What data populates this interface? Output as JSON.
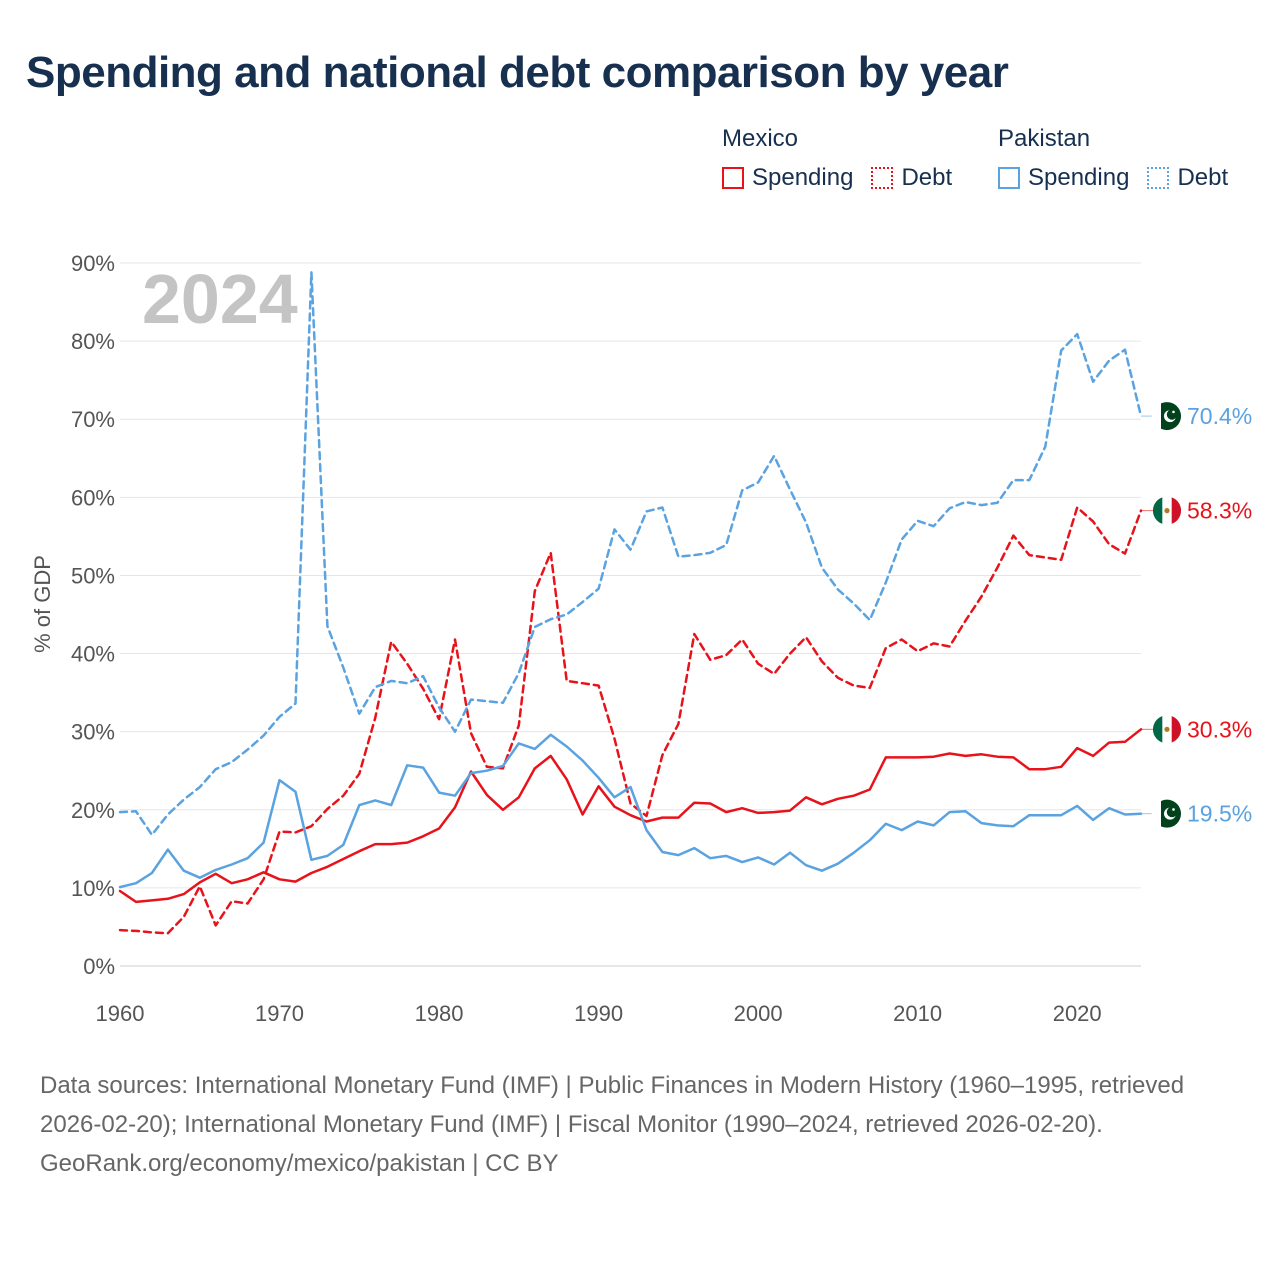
{
  "title": "Spending and national debt comparison by year",
  "legend": {
    "mexico": {
      "name": "Mexico",
      "spending": "Spending",
      "debt": "Debt"
    },
    "pakistan": {
      "name": "Pakistan",
      "spending": "Spending",
      "debt": "Debt"
    }
  },
  "year_watermark": "2024",
  "colors": {
    "mexico": "#e8131a",
    "pakistan": "#5aa2e0",
    "grid": "#e6e6e6",
    "title": "#17304f"
  },
  "icons": {
    "mexico": "mexico-flag-icon",
    "pakistan": "pakistan-flag-icon"
  },
  "footer": {
    "sources": "Data sources: International Monetary Fund (IMF) | Public Finances in Modern History (1960–1995, retrieved 2026-02-20); International Monetary Fund (IMF) | Fiscal Monitor (1990–2024, retrieved 2026-02-20).",
    "credit": "GeoRank.org/economy/mexico/pakistan | CC BY"
  },
  "chart_data": {
    "type": "line",
    "title": "Spending and national debt comparison by year",
    "xlabel": "",
    "ylabel": "% of GDP",
    "xlim": [
      1960,
      2025
    ],
    "ylim": [
      0,
      90
    ],
    "x_ticks": [
      1960,
      1970,
      1980,
      1990,
      2000,
      2010,
      2020
    ],
    "x_tick_labels": [
      "1960",
      "1970",
      "1980",
      "1990",
      "2000",
      "2010",
      "2020"
    ],
    "y_ticks": [
      0,
      10,
      20,
      30,
      40,
      50,
      60,
      70,
      80,
      90
    ],
    "y_tick_labels": [
      "0%",
      "10%",
      "20%",
      "30%",
      "40%",
      "50%",
      "60%",
      "70%",
      "80%",
      "90%"
    ],
    "grid": true,
    "x": [
      1960,
      1961,
      1962,
      1963,
      1964,
      1965,
      1966,
      1967,
      1968,
      1969,
      1970,
      1971,
      1972,
      1973,
      1974,
      1975,
      1976,
      1977,
      1978,
      1979,
      1980,
      1981,
      1982,
      1983,
      1984,
      1985,
      1986,
      1987,
      1988,
      1989,
      1990,
      1991,
      1992,
      1993,
      1994,
      1995,
      1996,
      1997,
      1998,
      1999,
      2000,
      2001,
      2002,
      2003,
      2004,
      2005,
      2006,
      2007,
      2008,
      2009,
      2010,
      2011,
      2012,
      2013,
      2014,
      2015,
      2016,
      2017,
      2018,
      2019,
      2020,
      2021,
      2022,
      2023,
      2024
    ],
    "series": [
      {
        "name": "Mexico Spending",
        "country": "mexico",
        "style": "solid",
        "end_label": "30.3%",
        "values": [
          9.6,
          8.2,
          8.4,
          8.6,
          9.2,
          10.7,
          11.8,
          10.6,
          11.1,
          12.0,
          11.1,
          10.8,
          11.9,
          12.7,
          13.7,
          14.7,
          15.6,
          15.6,
          15.8,
          16.6,
          17.6,
          20.3,
          24.9,
          21.9,
          20.0,
          21.6,
          25.3,
          26.9,
          23.9,
          19.4,
          23.0,
          20.4,
          19.3,
          18.5,
          19.0,
          19.0,
          20.9,
          20.8,
          19.7,
          20.2,
          19.6,
          19.7,
          19.9,
          21.6,
          20.7,
          21.4,
          21.8,
          22.6,
          26.7,
          26.7,
          26.7,
          26.8,
          27.2,
          26.9,
          27.1,
          26.8,
          26.7,
          25.2,
          25.2,
          25.5,
          27.9,
          26.9,
          28.6,
          28.7,
          30.3
        ]
      },
      {
        "name": "Mexico Debt",
        "country": "mexico",
        "style": "dashed",
        "end_label": "58.3%",
        "values": [
          4.6,
          4.5,
          4.3,
          4.2,
          6.3,
          10.2,
          5.2,
          8.3,
          8.0,
          11.1,
          17.2,
          17.1,
          17.9,
          20.1,
          21.8,
          24.6,
          31.8,
          41.5,
          38.7,
          35.5,
          31.6,
          41.8,
          29.8,
          25.5,
          25.3,
          30.8,
          48.0,
          52.9,
          36.5,
          36.2,
          35.9,
          29.1,
          20.8,
          19.2,
          27.0,
          31.0,
          42.5,
          39.2,
          39.8,
          41.8,
          38.7,
          37.4,
          40.0,
          42.1,
          39.0,
          36.9,
          35.9,
          35.6,
          40.7,
          41.8,
          40.3,
          41.3,
          40.9,
          44.2,
          47.3,
          51.0,
          55.1,
          52.6,
          52.3,
          52.0,
          58.7,
          56.9,
          54.0,
          52.8,
          58.3
        ]
      },
      {
        "name": "Pakistan Spending",
        "country": "pakistan",
        "style": "solid",
        "end_label": "19.5%",
        "values": [
          10.1,
          10.6,
          11.9,
          14.9,
          12.2,
          11.3,
          12.3,
          13.0,
          13.8,
          15.8,
          23.8,
          22.3,
          13.6,
          14.1,
          15.5,
          20.6,
          21.2,
          20.6,
          25.7,
          25.4,
          22.2,
          21.8,
          24.7,
          25.0,
          25.6,
          28.5,
          27.8,
          29.6,
          28.1,
          26.3,
          24.1,
          21.6,
          22.9,
          17.4,
          14.6,
          14.2,
          15.1,
          13.8,
          14.1,
          13.3,
          13.9,
          13.0,
          14.5,
          12.9,
          12.2,
          13.1,
          14.5,
          16.1,
          18.2,
          17.4,
          18.5,
          18.0,
          19.7,
          19.8,
          18.3,
          18.0,
          17.9,
          19.3,
          19.3,
          19.3,
          20.5,
          18.7,
          20.2,
          19.4,
          19.5
        ]
      },
      {
        "name": "Pakistan Debt",
        "country": "pakistan",
        "style": "dashed",
        "end_label": "70.4%",
        "values": [
          19.7,
          19.8,
          16.8,
          19.4,
          21.3,
          22.9,
          25.2,
          26.1,
          27.7,
          29.5,
          31.9,
          33.6,
          88.8,
          43.5,
          38.2,
          32.3,
          35.7,
          36.5,
          36.2,
          37.1,
          33.1,
          30.0,
          34.1,
          33.9,
          33.7,
          37.5,
          43.4,
          44.4,
          45.0,
          46.6,
          48.3,
          55.9,
          53.3,
          58.2,
          58.7,
          52.4,
          52.6,
          52.9,
          53.9,
          60.9,
          61.9,
          65.3,
          61.0,
          56.8,
          51.0,
          48.2,
          46.4,
          44.3,
          49.1,
          54.6,
          57.0,
          56.3,
          58.6,
          59.4,
          59.0,
          59.3,
          62.2,
          62.2,
          66.5,
          78.8,
          80.9,
          74.8,
          77.5,
          78.9,
          70.4
        ]
      }
    ]
  }
}
